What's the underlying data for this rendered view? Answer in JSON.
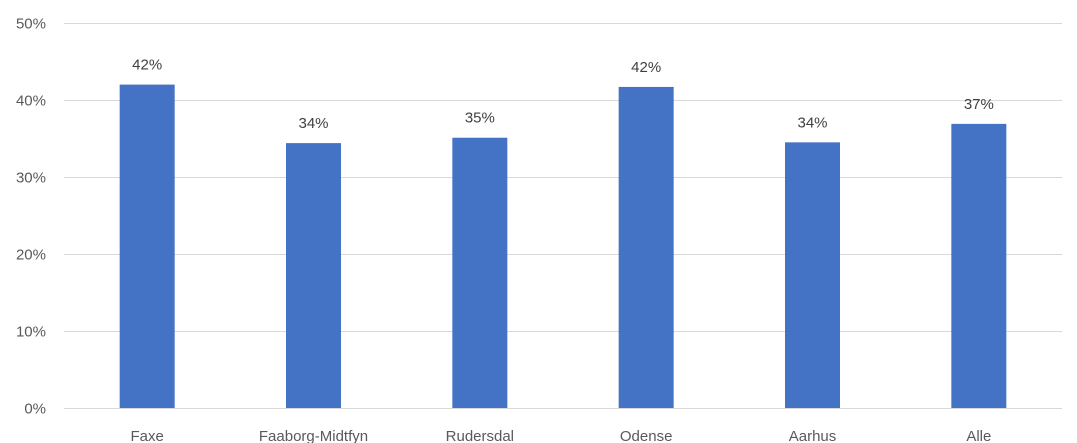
{
  "chart_data": {
    "type": "bar",
    "categories": [
      "Faxe",
      "Faaborg-Midtfyn",
      "Rudersdal",
      "Odense",
      "Aarhus",
      "Alle"
    ],
    "values": [
      0.42,
      0.344,
      0.351,
      0.417,
      0.345,
      0.369
    ],
    "data_labels": [
      "42%",
      "34%",
      "35%",
      "42%",
      "34%",
      "37%"
    ],
    "ylim": [
      0,
      0.5
    ],
    "yticks": [
      0,
      0.1,
      0.2,
      0.3,
      0.4,
      0.5
    ],
    "ytick_labels": [
      "0%",
      "10%",
      "20%",
      "30%",
      "40%",
      "50%"
    ],
    "title": "",
    "xlabel": "",
    "ylabel": "",
    "grid": true,
    "legend": "none",
    "bar_color": "#4472c4"
  }
}
